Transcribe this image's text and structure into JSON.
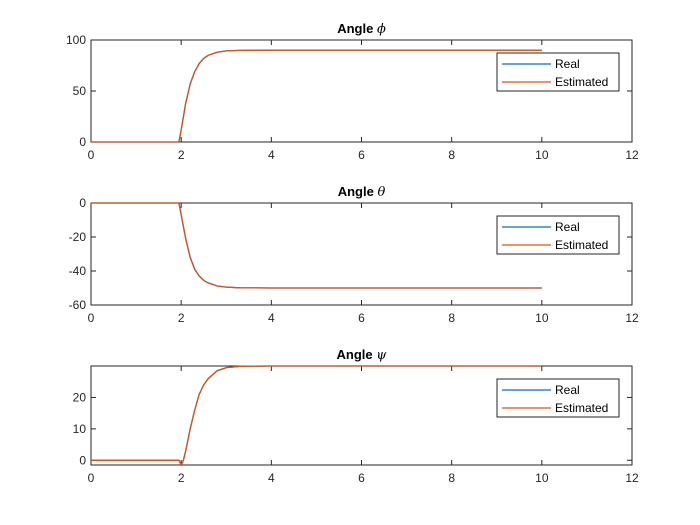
{
  "figure": {
    "colors": {
      "real": "#0072BD",
      "estimated": "#D95319",
      "axes": "#262626",
      "background": "#ffffff"
    }
  },
  "chart_data": [
    {
      "type": "line",
      "title": "Angle ϕ",
      "title_prefix": "Angle",
      "title_symbol": "ϕ",
      "xlim": [
        0,
        12
      ],
      "ylim": [
        0,
        100
      ],
      "xticks": [
        0,
        2,
        4,
        6,
        8,
        10,
        12
      ],
      "yticks": [
        0,
        50,
        100
      ],
      "grid": false,
      "legend_position": "top-right",
      "series": [
        {
          "name": "Real",
          "color": "#0072BD",
          "x": [
            0,
            1.95,
            2.0,
            2.1,
            2.2,
            2.3,
            2.4,
            2.5,
            2.6,
            2.8,
            3.0,
            3.3,
            4.0,
            10
          ],
          "y": [
            0,
            0,
            12,
            38,
            57,
            69,
            77,
            82,
            85,
            88,
            89.3,
            89.8,
            90,
            90
          ]
        },
        {
          "name": "Estimated",
          "color": "#D95319",
          "x": [
            0,
            1.95,
            2.0,
            2.1,
            2.2,
            2.3,
            2.4,
            2.5,
            2.6,
            2.8,
            3.0,
            3.3,
            4.0,
            10
          ],
          "y": [
            0,
            0,
            12,
            38,
            57,
            69,
            77,
            82,
            85,
            88,
            89.3,
            89.8,
            90,
            90
          ]
        }
      ]
    },
    {
      "type": "line",
      "title": "Angle θ",
      "title_prefix": "Angle",
      "title_symbol": "θ",
      "xlim": [
        0,
        12
      ],
      "ylim": [
        -60,
        0
      ],
      "xticks": [
        0,
        2,
        4,
        6,
        8,
        10,
        12
      ],
      "yticks": [
        -60,
        -40,
        -20,
        0
      ],
      "grid": false,
      "legend_position": "top-right",
      "series": [
        {
          "name": "Real",
          "color": "#0072BD",
          "x": [
            0,
            1.95,
            2.0,
            2.1,
            2.2,
            2.3,
            2.4,
            2.5,
            2.6,
            2.8,
            3.0,
            3.3,
            4.0,
            10
          ],
          "y": [
            0,
            0,
            -7,
            -21,
            -32,
            -39,
            -43,
            -45.5,
            -47,
            -48.8,
            -49.5,
            -49.9,
            -50,
            -50
          ]
        },
        {
          "name": "Estimated",
          "color": "#D95319",
          "x": [
            0,
            1.95,
            2.0,
            2.1,
            2.2,
            2.3,
            2.4,
            2.5,
            2.6,
            2.8,
            3.0,
            3.3,
            4.0,
            10
          ],
          "y": [
            0,
            0,
            -7,
            -21,
            -32,
            -39,
            -43,
            -45.5,
            -47,
            -48.8,
            -49.5,
            -49.9,
            -50,
            -50
          ]
        }
      ]
    },
    {
      "type": "line",
      "title": "Angle ψ",
      "title_prefix": "Angle",
      "title_symbol": "ψ",
      "xlim": [
        0,
        12
      ],
      "ylim": [
        -1.5,
        30
      ],
      "xticks": [
        0,
        2,
        4,
        6,
        8,
        10,
        12
      ],
      "yticks": [
        0,
        10,
        20
      ],
      "grid": false,
      "legend_position": "top-right",
      "series": [
        {
          "name": "Real",
          "color": "#0072BD",
          "x": [
            0,
            1.95,
            2.0,
            2.05,
            2.1,
            2.2,
            2.3,
            2.4,
            2.5,
            2.6,
            2.8,
            3.0,
            3.3,
            4.0,
            10
          ],
          "y": [
            0,
            0,
            -1.5,
            0,
            3,
            10,
            16,
            21,
            24,
            26,
            28.5,
            29.5,
            29.9,
            30,
            30
          ]
        },
        {
          "name": "Estimated",
          "color": "#D95319",
          "x": [
            0,
            1.95,
            2.0,
            2.05,
            2.1,
            2.2,
            2.3,
            2.4,
            2.5,
            2.6,
            2.8,
            3.0,
            3.3,
            4.0,
            10
          ],
          "y": [
            0,
            0,
            -1.5,
            0,
            3,
            10,
            16,
            21,
            24,
            26,
            28.5,
            29.5,
            29.9,
            30,
            30
          ]
        }
      ]
    }
  ]
}
